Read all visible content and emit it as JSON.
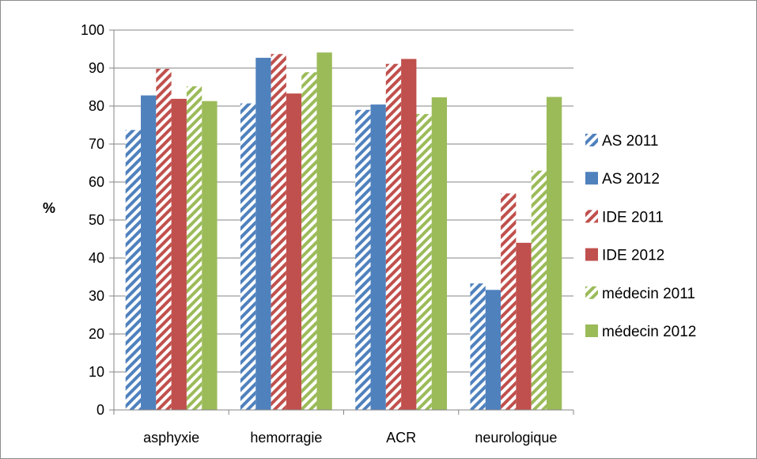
{
  "chart_data": {
    "type": "bar",
    "title": "",
    "xlabel": "",
    "ylabel": "%",
    "ylim": [
      0,
      100
    ],
    "yticks": [
      0,
      10,
      20,
      30,
      40,
      50,
      60,
      70,
      80,
      90,
      100
    ],
    "grid": true,
    "legend_position": "right",
    "categories": [
      "asphyxie",
      "hemorragie",
      "ACR",
      "neurologique"
    ],
    "series": [
      {
        "name": "AS 2011",
        "values": [
          73.7,
          80.7,
          79.0,
          33.3
        ],
        "color": "#4f81bd",
        "pattern": "hatched"
      },
      {
        "name": "AS 2012",
        "values": [
          82.8,
          92.7,
          80.4,
          31.6
        ],
        "color": "#4f81bd",
        "pattern": "solid"
      },
      {
        "name": "IDE 2011",
        "values": [
          89.8,
          93.7,
          91.1,
          57.0
        ],
        "color": "#c0504d",
        "pattern": "hatched"
      },
      {
        "name": "IDE 2012",
        "values": [
          81.9,
          83.3,
          92.4,
          44.0
        ],
        "color": "#c0504d",
        "pattern": "solid"
      },
      {
        "name": "médecin 2011",
        "values": [
          85.2,
          88.9,
          77.9,
          63.0
        ],
        "color": "#9bbb59",
        "pattern": "hatched"
      },
      {
        "name": "médecin 2012",
        "values": [
          81.3,
          94.1,
          82.3,
          82.4
        ],
        "color": "#9bbb59",
        "pattern": "solid"
      }
    ]
  }
}
